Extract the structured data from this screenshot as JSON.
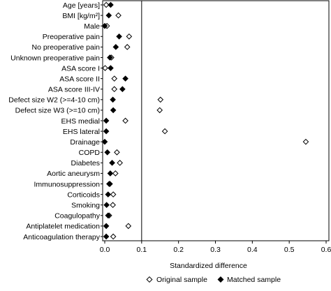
{
  "chart_data": {
    "type": "scatter",
    "orientation": "horizontal",
    "xlabel": "Standardized difference",
    "xlim": [
      0,
      0.6
    ],
    "xticks": [
      "0.0",
      "0.1",
      "0.2",
      "0.3",
      "0.4",
      "0.5",
      "0.6"
    ],
    "reference_line_x": 0.1,
    "legend_position": "bottom",
    "categories": [
      "Age [years]",
      "BMI [kg/m²]",
      "Male",
      "Preoperative pain",
      "No preoperative pain",
      "Unknown preoperative pain",
      "ASA score I",
      "ASA score II",
      "ASA score III-IV",
      "Defect size W2 (>=4-10 cm)",
      "Defect size W3 (>=10 cm)",
      "EHS medial",
      "EHS lateral",
      "Drainage",
      "COPD",
      "Diabetes",
      "Aortic aneurysm",
      "Immunosuppression",
      "Corticoids",
      "Smoking",
      "Coagulopathy",
      "Antiplatelet medication",
      "Anticoagulation therapy"
    ],
    "series": [
      {
        "name": "Original sample",
        "marker": "open-diamond",
        "values": [
          0.004,
          0.037,
          0.006,
          0.066,
          0.061,
          0.018,
          0.001,
          0.026,
          0.026,
          0.151,
          0.149,
          0.056,
          0.163,
          0.545,
          0.033,
          0.041,
          0.029,
          0.014,
          0.023,
          0.022,
          0.012,
          0.064,
          0.023
        ]
      },
      {
        "name": "Matched sample",
        "marker": "filled-diamond",
        "values": [
          0.016,
          0.011,
          0.0,
          0.039,
          0.03,
          0.014,
          0.016,
          0.056,
          0.048,
          0.022,
          0.023,
          0.004,
          0.004,
          0.0,
          0.007,
          0.02,
          0.015,
          0.012,
          0.009,
          0.005,
          0.009,
          0.004,
          0.004
        ]
      }
    ]
  }
}
